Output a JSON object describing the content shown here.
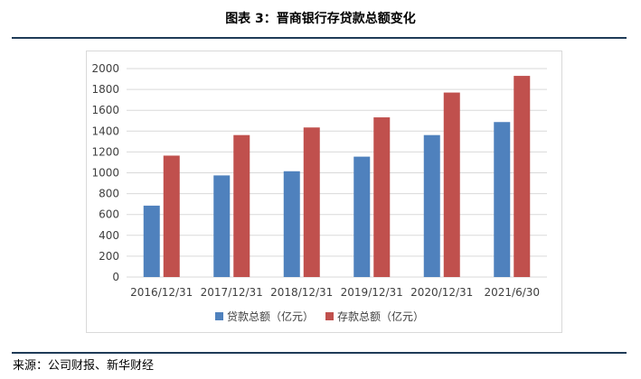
{
  "figure": {
    "title": "图表 3：晋商银行存贷款总额变化",
    "source": "来源：公司财报、新华财经"
  },
  "colors": {
    "loan": "#4f81bd",
    "deposit": "#c0504d",
    "rule": "#1f3b57",
    "grid": "#d9d9d9"
  },
  "chart_data": {
    "type": "bar",
    "categories": [
      "2016/12/31",
      "2017/12/31",
      "2018/12/31",
      "2019/12/31",
      "2020/12/31",
      "2021/6/30"
    ],
    "series": [
      {
        "name": "贷款总额（亿元）",
        "values": [
          685,
          975,
          1015,
          1155,
          1362,
          1487
        ]
      },
      {
        "name": "存款总额（亿元）",
        "values": [
          1165,
          1362,
          1435,
          1532,
          1770,
          1930
        ]
      }
    ],
    "yticks": [
      "0",
      "200",
      "400",
      "600",
      "800",
      "1000",
      "1200",
      "1400",
      "1600",
      "1800",
      "2000"
    ],
    "ylim": [
      0,
      2000
    ],
    "grid": true,
    "legend": "bottom"
  }
}
